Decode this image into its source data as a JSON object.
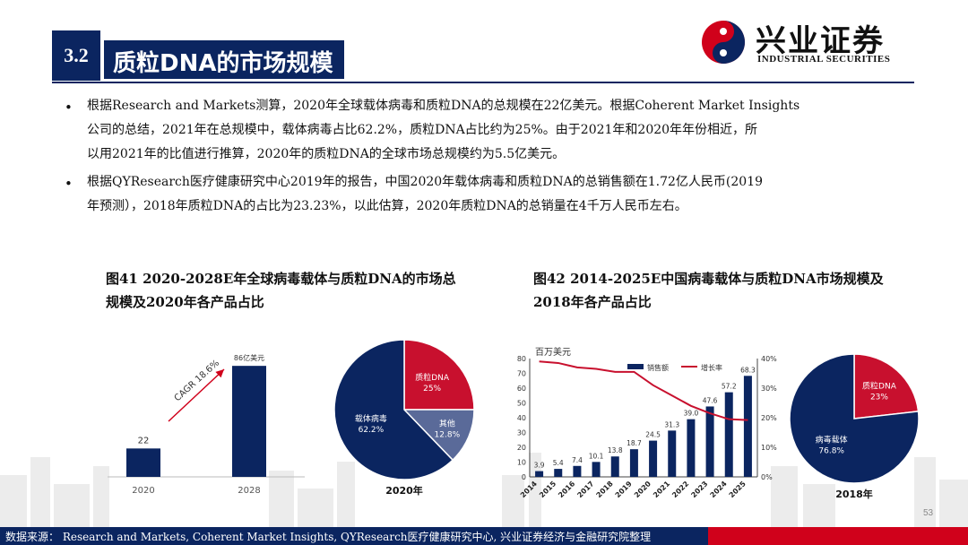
{
  "header": {
    "section_number": "3.2",
    "section_title": "质粒DNA的市场规模",
    "logo_cn": "兴业证券",
    "logo_en": "INDUSTRIAL SECURITIES",
    "colors": {
      "navy": "#0b2560",
      "red": "#d0011b"
    }
  },
  "bullets": [
    {
      "marker": "•",
      "lines": [
        "根据Research and Markets测算，2020年全球载体病毒和质粒DNA的总规模在22亿美元。根据Coherent Market Insights",
        "公司的总结，2021年在总规模中，载体病毒占比62.2%，质粒DNA占比约为25%。由于2021年和2020年年份相近，所",
        "以用2021年的比值进行推算，2020年的质粒DNA的全球市场总规模约为5.5亿美元。"
      ]
    },
    {
      "marker": "•",
      "lines": [
        "根据QYResearch医疗健康研究中心2019年的报告，中国2020年载体病毒和质粒DNA的总销售额在1.72亿人民币(2019",
        "年预测），2018年质粒DNA的占比为23.23%，以此估算，2020年质粒DNA的总销量在4千万人民币左右。"
      ]
    }
  ],
  "figure41": {
    "title_lines": [
      "图41 2020-2028E年全球病毒载体与质粒DNA的市场总",
      "规模及2020年各产品占比"
    ],
    "bar_chart": {
      "type": "bar",
      "categories": [
        "2020",
        "2028"
      ],
      "values": [
        22,
        86
      ],
      "value_labels": [
        "22",
        "86亿美元"
      ],
      "annotation": "CAGR 18.6%",
      "ylim": [
        0,
        100
      ],
      "color": "#0b2560"
    },
    "pie_chart": {
      "type": "pie",
      "slices": [
        {
          "name": "载体病毒",
          "label": "62.2%",
          "value": 62.2,
          "color": "#0b2560"
        },
        {
          "name": "质粒DNA",
          "label": "25%",
          "value": 25,
          "color": "#c8102e"
        },
        {
          "name": "其他",
          "label": "12.8%",
          "value": 12.8,
          "color": "#5a6a99"
        }
      ],
      "caption": "2020年"
    }
  },
  "figure42": {
    "title_lines": [
      "图42 2014-2025E中国病毒载体与质粒DNA市场规模及",
      "2018年各产品占比"
    ],
    "combo_chart": {
      "type": "bar",
      "unit_label": "百万美元",
      "categories": [
        "2014",
        "2015",
        "2016",
        "2017",
        "2018",
        "2019",
        "2020",
        "2021",
        "2022",
        "2023",
        "2024",
        "2025"
      ],
      "series": [
        {
          "name": "销售额",
          "type": "bar",
          "axis": "left",
          "values": [
            3.9,
            5.4,
            7.4,
            10.1,
            13.8,
            18.7,
            24.5,
            31.3,
            39.0,
            47.6,
            57.2,
            68.3
          ],
          "labels": [
            "3.9",
            "5.4",
            "7.4",
            "10.1",
            "13.8",
            "18.7",
            "24.5",
            "31.3",
            "39.0",
            "47.6",
            "57.2",
            "68.3"
          ],
          "color": "#0b2560"
        },
        {
          "name": "增长率",
          "type": "line",
          "axis": "right",
          "values": [
            39,
            38.5,
            37,
            36.5,
            35.5,
            35.5,
            31,
            27.5,
            24,
            21.5,
            19.5,
            19.2
          ],
          "color": "#c8102e"
        }
      ],
      "left_axis": {
        "ylim": [
          0,
          80
        ],
        "ticks": [
          "0",
          "10",
          "20",
          "30",
          "40",
          "50",
          "60",
          "70",
          "80"
        ]
      },
      "right_axis": {
        "ylim": [
          0,
          40
        ],
        "ticks": [
          "0%",
          "10%",
          "20%",
          "30%",
          "40%"
        ]
      },
      "legend_position": "top-center"
    },
    "pie_chart": {
      "type": "pie",
      "slices": [
        {
          "name": "病毒载体",
          "label": "76.8%",
          "value": 76.8,
          "color": "#0b2560"
        },
        {
          "name": "质粒DNA",
          "label": "23%",
          "value": 23.2,
          "color": "#c8102e"
        }
      ],
      "caption": "2018年"
    }
  },
  "footer": {
    "source": "数据来源： Research and Markets, Coherent Market Insights, QYResearch医疗健康研究中心, 兴业证券经济与金融研究院整理",
    "page_number": "53"
  }
}
